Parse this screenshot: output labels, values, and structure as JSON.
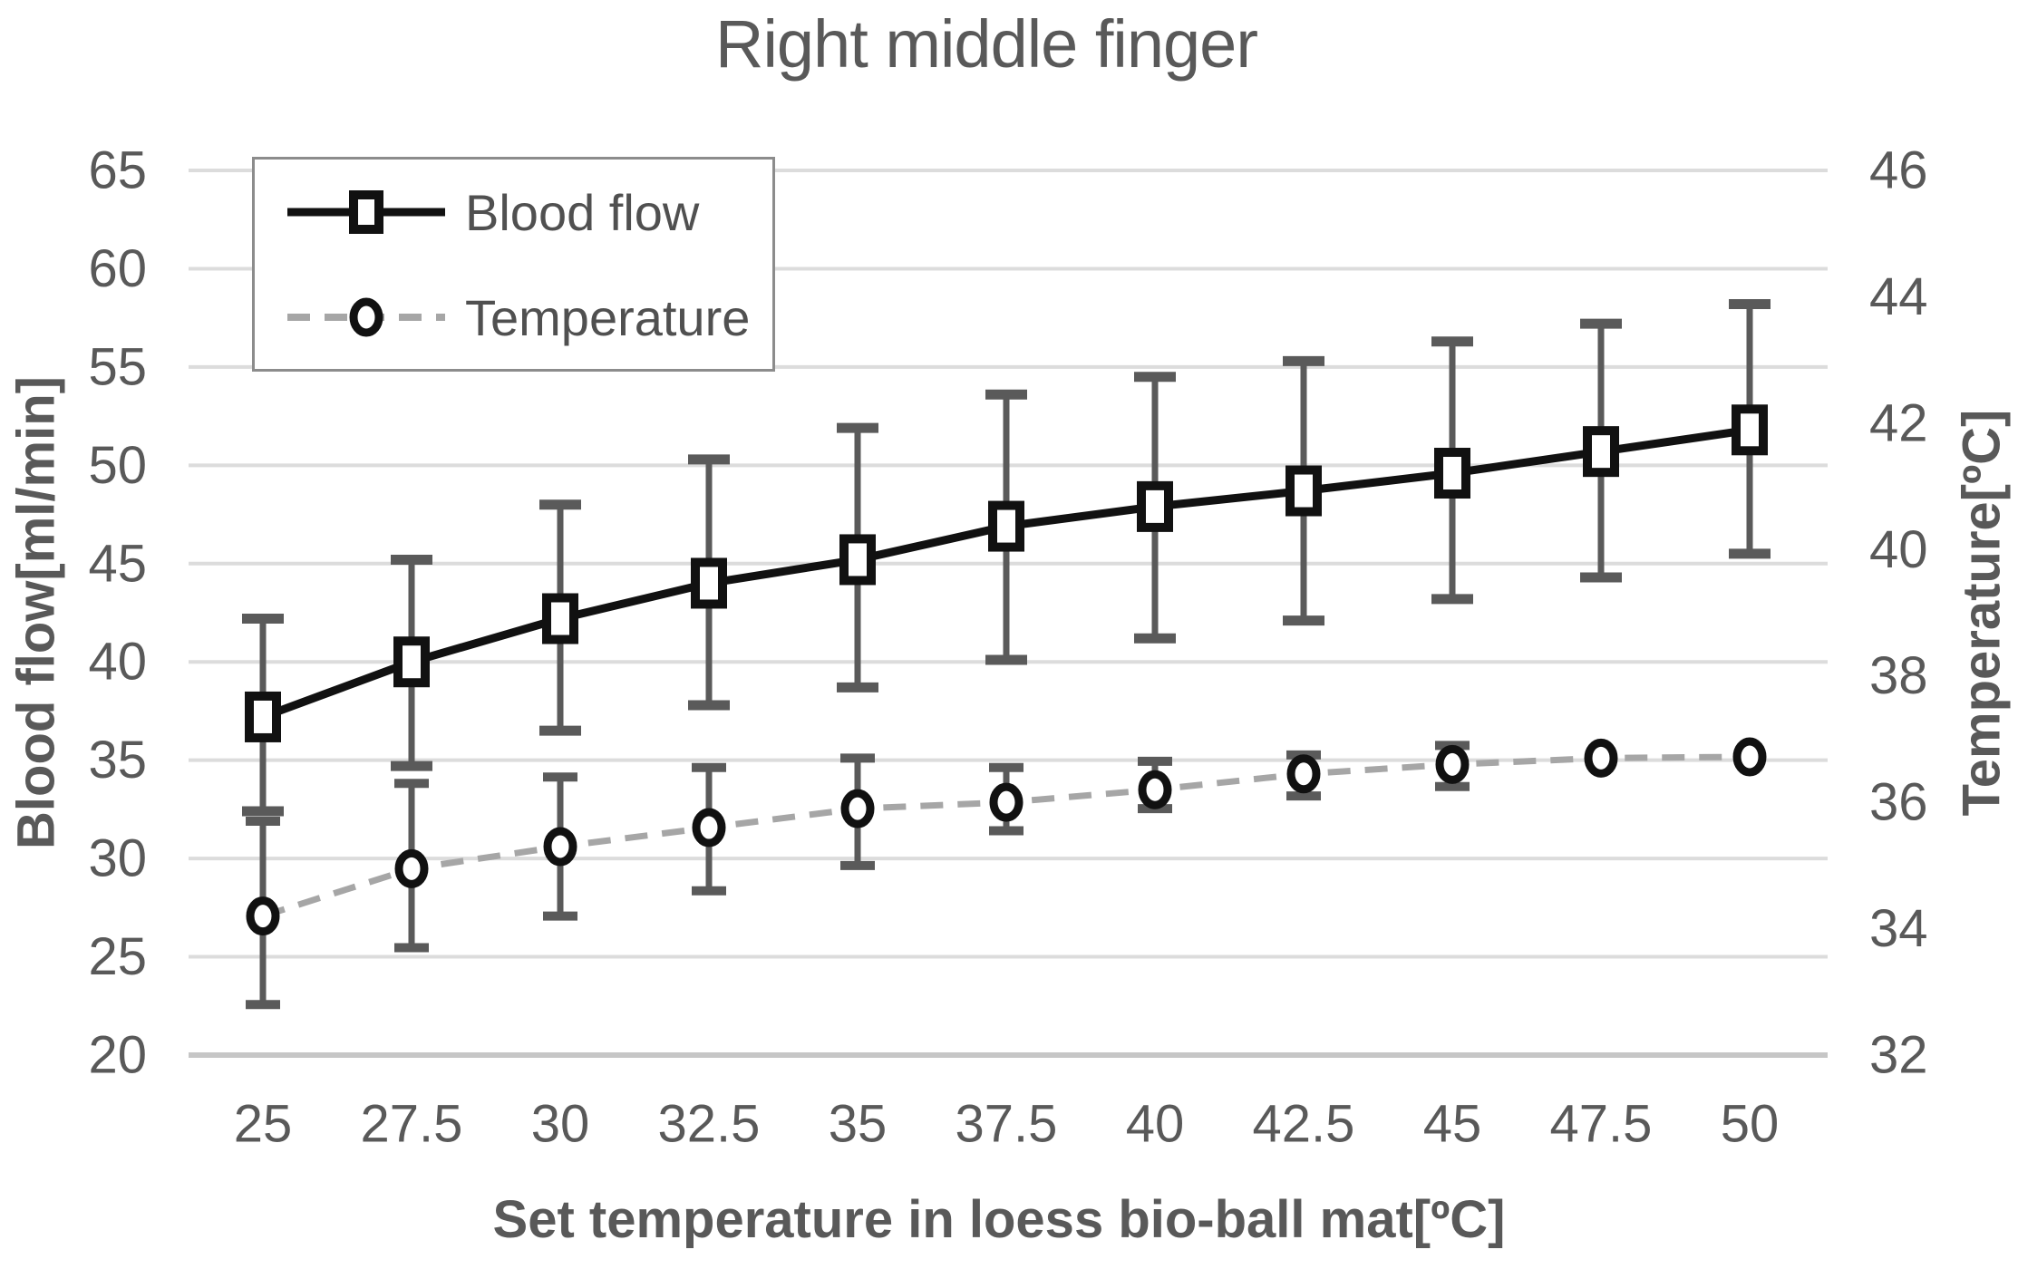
{
  "chart_data": {
    "type": "line",
    "title": "Right middle finger",
    "x_title": "Set temperature in loess bio-ball mat[ºC]",
    "y_left_title": "Blood flow[ml/min]",
    "y_right_title": "Temperature[ºC]",
    "categories": [
      25,
      27.5,
      30,
      32.5,
      35,
      37.5,
      40,
      42.5,
      45,
      47.5,
      50
    ],
    "y_left": {
      "min": 20,
      "max": 65,
      "ticks": [
        65,
        60,
        55,
        50,
        45,
        40,
        35,
        30,
        25,
        20
      ]
    },
    "y_right": {
      "min": 32,
      "max": 46,
      "ticks": [
        46,
        44,
        42,
        40,
        38,
        36,
        34,
        32
      ]
    },
    "grid": true,
    "legend_position": "top-left-inside",
    "series": [
      {
        "name": "Blood flow",
        "axis": "left",
        "marker": "square",
        "line_style": "solid",
        "color": "#111111",
        "values": [
          37.2,
          40.0,
          42.2,
          44.0,
          45.2,
          46.9,
          47.9,
          48.7,
          49.6,
          50.7,
          51.8
        ],
        "err_hi": [
          42.2,
          45.2,
          48.0,
          50.3,
          51.9,
          53.6,
          54.5,
          55.3,
          56.3,
          57.2,
          58.2
        ],
        "err_lo": [
          32.4,
          34.7,
          36.5,
          37.8,
          38.7,
          40.1,
          41.2,
          42.1,
          43.2,
          44.3,
          45.5
        ]
      },
      {
        "name": "Temperature",
        "axis": "right",
        "marker": "circle",
        "line_style": "dashed",
        "color": "#a6a6a6",
        "values": [
          34.2,
          34.95,
          35.3,
          35.6,
          35.9,
          36.0,
          36.2,
          36.45,
          36.6,
          36.7,
          36.72
        ],
        "err_hi": [
          35.7,
          36.3,
          36.4,
          36.55,
          36.7,
          36.55,
          36.65,
          36.75,
          36.9,
          36.7,
          36.72
        ],
        "err_lo": [
          32.8,
          33.7,
          34.2,
          34.6,
          35.0,
          35.55,
          35.9,
          36.1,
          36.25,
          36.7,
          36.72
        ]
      }
    ],
    "colors": {
      "gridline": "#dcdcdc",
      "axis_line": "#c6c6c6",
      "error_bar": "#5a5a5a",
      "tick_text": "#595959",
      "marker_fill": "#ffffff"
    }
  }
}
